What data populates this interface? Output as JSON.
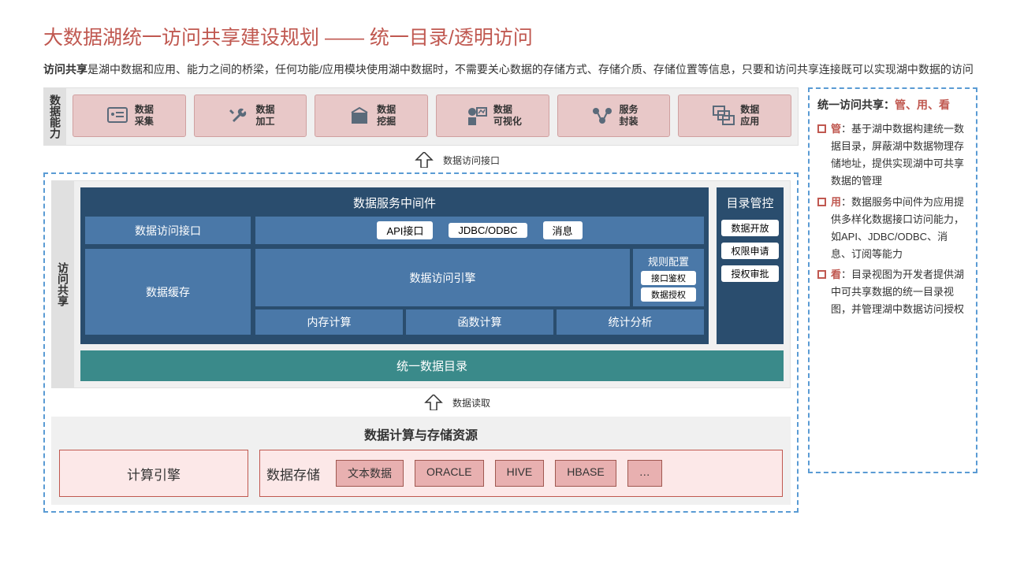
{
  "title": "大数据湖统一访问共享建设规划 —— 统一目录/透明访问",
  "subtitle_bold": "访问共享",
  "subtitle_rest": "是湖中数据和应用、能力之间的桥梁，任何功能/应用模块使用湖中数据时，不需要关心数据的存储方式、存储介质、存储位置等信息，只要和访问共享连接既可以实现湖中数据的访问",
  "band_top_label": "数据能力",
  "top_boxes": [
    "数据\n采集",
    "数据\n加工",
    "数据\n挖掘",
    "数据\n可视化",
    "服务\n封装",
    "数据\n应用"
  ],
  "arrow1_label": "数据访问接口",
  "band_mid_label": "访问共享",
  "middleware_title": "数据服务中间件",
  "access_iface": "数据访问接口",
  "pills": [
    "API接口",
    "JDBC/ODBC",
    "消息"
  ],
  "cache": "数据缓存",
  "engine_title": "数据访问引擎",
  "engine_items": [
    "内存计算",
    "函数计算",
    "统计分析"
  ],
  "rule_title": "规则配置",
  "rule_items": [
    "接口鉴权",
    "数据授权"
  ],
  "catalog_title": "目录管控",
  "catalog_items": [
    "数据开放",
    "权限申请",
    "授权审批"
  ],
  "teal_bar": "统一数据目录",
  "arrow2_label": "数据读取",
  "bottom_title": "数据计算与存储资源",
  "compute_engine": "计算引擎",
  "storage_label": "数据存储",
  "storage_items": [
    "文本数据",
    "ORACLE",
    "HIVE",
    "HBASE",
    "…"
  ],
  "right_title_a": "统一访问共享：",
  "right_title_b": "管、用、看",
  "right_items": [
    {
      "k": "管",
      "t": "：基于湖中数据构建统一数据目录，屏蔽湖中数据物理存储地址，提供实现湖中可共享数据的管理"
    },
    {
      "k": "用",
      "t": "：数据服务中间件为应用提供多样化数据接口访问能力，如API、JDBC/ODBC、消息、订阅等能力"
    },
    {
      "k": "看",
      "t": "：目录视图为开发者提供湖中可共享数据的统一目录视图，并管理湖中数据访问授权"
    }
  ],
  "colors": {
    "title": "#c05850",
    "dark": "#2a4d6e",
    "medium": "#4a78a8",
    "teal": "#3a8a8a",
    "pink": "#fce8e8",
    "salmon": "#e8c8c8",
    "dash": "#5a9bd4"
  }
}
